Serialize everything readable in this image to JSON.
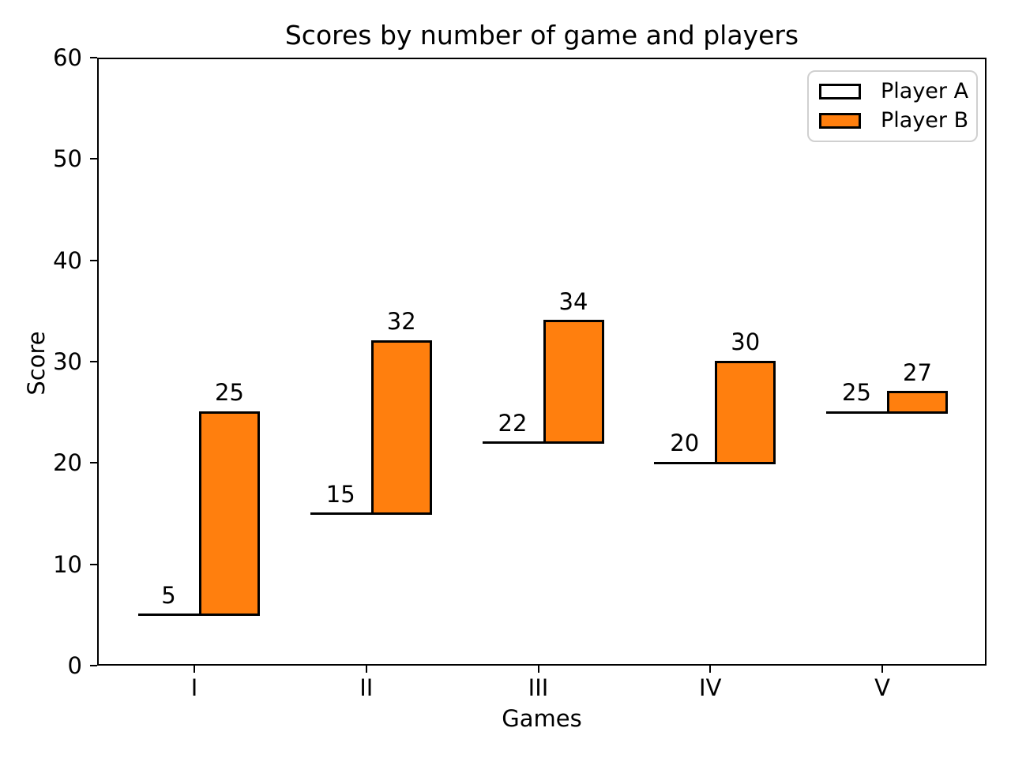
{
  "figure": {
    "background": "#ffffff"
  },
  "chart_data": {
    "type": "bar",
    "title": "Scores by number of game and players",
    "xlabel": "Games",
    "ylabel": "Score",
    "categories": [
      "I",
      "II",
      "III",
      "IV",
      "V"
    ],
    "series": [
      {
        "name": "Player A",
        "values": [
          5,
          15,
          22,
          20,
          25
        ],
        "fill": "#ffffff",
        "edge": "#000000",
        "render": "flat-line"
      },
      {
        "name": "Player B",
        "values": [
          25,
          32,
          34,
          30,
          27
        ],
        "fill": "#ff7f0e",
        "edge": "#000000",
        "render": "bar",
        "bottom_series": "Player A"
      }
    ],
    "bar_value_labels": {
      "Player A": [
        "5",
        "15",
        "22",
        "20",
        "25"
      ],
      "Player B": [
        "25",
        "32",
        "34",
        "30",
        "27"
      ]
    },
    "ylim": [
      0,
      60
    ],
    "yticks": [
      0,
      10,
      20,
      30,
      40,
      50,
      60
    ],
    "grid": false,
    "legend_position": "upper right"
  },
  "colors": {
    "bar_fill": "#ff7f0e",
    "bar_edge": "#000000",
    "axis": "#000000",
    "text": "#000000",
    "legend_border": "#d0d0d0",
    "background": "#ffffff"
  }
}
